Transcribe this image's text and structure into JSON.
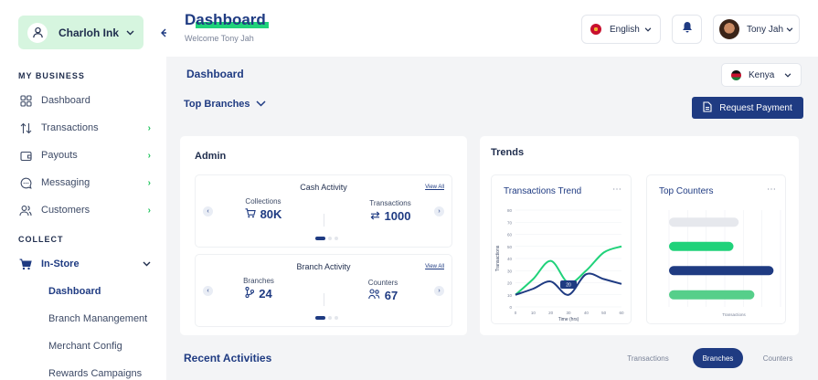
{
  "sidebar": {
    "brand_name": "Charloh Ink",
    "my_business_title": "MY BUSINESS",
    "items": [
      {
        "label": "Dashboard"
      },
      {
        "label": "Transactions"
      },
      {
        "label": "Payouts"
      },
      {
        "label": "Messaging"
      },
      {
        "label": "Customers"
      }
    ],
    "collect_title": "COLLECT",
    "instore_label": "In-Store",
    "sub_items": [
      {
        "label": "Dashboard"
      },
      {
        "label": "Branch Manangement"
      },
      {
        "label": "Merchant Config"
      },
      {
        "label": "Rewards Campaigns"
      }
    ]
  },
  "header": {
    "title": "Dashboard",
    "welcome": "Welcome Tony Jah",
    "language": "English",
    "user_name": "Tony Jah"
  },
  "main": {
    "subtitle": "Dashboard",
    "country": "Kenya",
    "branches_dropdown": "Top Branches",
    "request_payment": "Request Payment",
    "admin": {
      "title": "Admin",
      "cash_activity": {
        "title": "Cash Activity",
        "view_all": "View All",
        "left_label": "Collections",
        "left_value": "80K",
        "right_label": "Transactions",
        "right_value": "1000"
      },
      "branch_activity": {
        "title": "Branch Activity",
        "view_all": "View All",
        "left_label": "Branches",
        "left_value": "24",
        "right_label": "Counters",
        "right_value": "67"
      }
    },
    "trends": {
      "title": "Trends",
      "transactions_trend_title": "Transactions Trend",
      "top_counters_title": "Top Counters"
    },
    "recent_title": "Recent Activities",
    "tabs": [
      "Transactions",
      "Branches",
      "Counters"
    ],
    "active_tab": "Branches"
  },
  "colors": {
    "primary": "#1f3b82",
    "accent_green": "#20d27a",
    "light_green": "#56cf8a"
  },
  "chart_data": [
    {
      "type": "line",
      "title": "Transactions Trend",
      "xlabel": "Time (hrs)",
      "ylabel": "Transactions",
      "x": [
        0,
        10,
        20,
        30,
        40,
        50,
        60
      ],
      "xlim": [
        0,
        60
      ],
      "ylim": [
        0,
        80
      ],
      "yticks": [
        0,
        10,
        20,
        30,
        40,
        50,
        60,
        70,
        80
      ],
      "series": [
        {
          "color": "#20d27a",
          "values": [
            10,
            23,
            38,
            20,
            30,
            45,
            50
          ]
        },
        {
          "color": "#1f3b82",
          "values": [
            10,
            15,
            21,
            10,
            27,
            23,
            19
          ]
        }
      ],
      "tooltip": {
        "x": 30,
        "label": "20"
      }
    },
    {
      "type": "bar",
      "title": "Top Counters",
      "orientation": "horizontal",
      "xlabel": "Transactions",
      "series": [
        {
          "color": "#e6e8ed",
          "values": [
            40
          ]
        },
        {
          "color": "#20d27a",
          "values": [
            37
          ]
        },
        {
          "color": "#1f3b82",
          "values": [
            60
          ]
        },
        {
          "color": "#56cf8a",
          "values": [
            49
          ]
        }
      ],
      "xlim": [
        0,
        64
      ]
    }
  ]
}
